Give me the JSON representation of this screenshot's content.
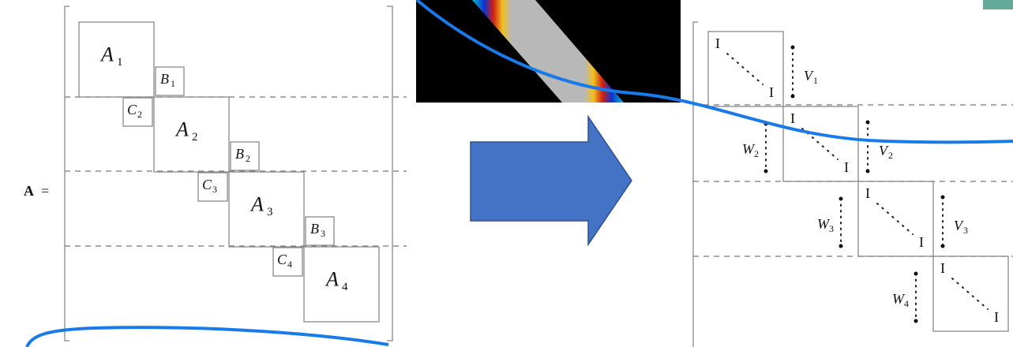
{
  "left_matrix": {
    "lhs": "A",
    "equals": "=",
    "diagonal": [
      {
        "label": "A",
        "sub": "1"
      },
      {
        "label": "A",
        "sub": "2"
      },
      {
        "label": "A",
        "sub": "3"
      },
      {
        "label": "A",
        "sub": "4"
      }
    ],
    "upper": [
      {
        "label": "B",
        "sub": "1"
      },
      {
        "label": "B",
        "sub": "2"
      },
      {
        "label": "B",
        "sub": "3"
      }
    ],
    "lower": [
      {
        "label": "C",
        "sub": "2"
      },
      {
        "label": "C",
        "sub": "3"
      },
      {
        "label": "C",
        "sub": "4"
      }
    ]
  },
  "right_matrix": {
    "diagonal": [
      {
        "top": "I",
        "bottom": "I"
      },
      {
        "top": "I",
        "bottom": "I"
      },
      {
        "top": "I",
        "bottom": "I"
      },
      {
        "top": "I",
        "bottom": "I"
      }
    ],
    "upper": [
      {
        "label": "V",
        "sub": "1"
      },
      {
        "label": "V",
        "sub": "2"
      },
      {
        "label": "V",
        "sub": "3"
      }
    ],
    "lower": [
      {
        "label": "W",
        "sub": "2"
      },
      {
        "label": "W",
        "sub": "3"
      },
      {
        "label": "W",
        "sub": "4"
      }
    ]
  }
}
